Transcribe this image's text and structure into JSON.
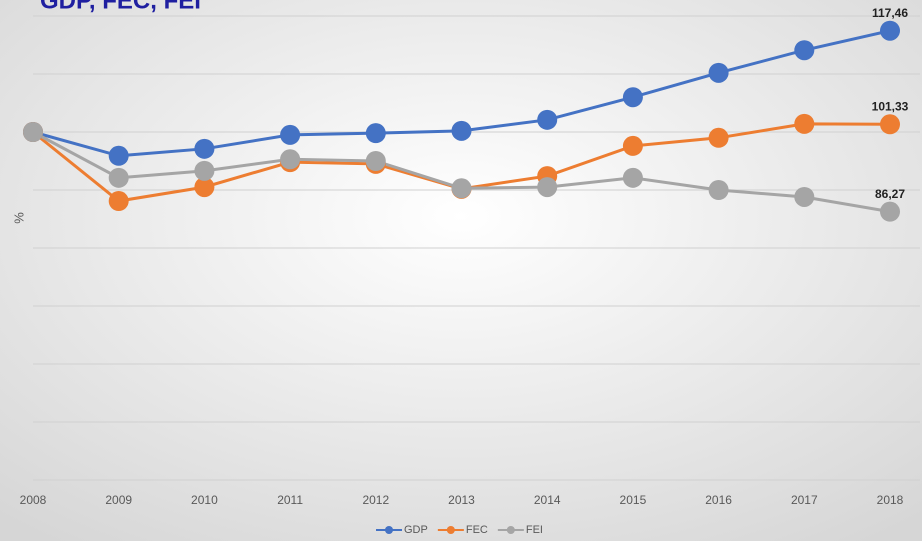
{
  "chart_data": {
    "type": "line",
    "title": "GDP, FEC, FEI",
    "y_label": "%",
    "categories": [
      "2008",
      "2009",
      "2010",
      "2011",
      "2012",
      "2013",
      "2014",
      "2015",
      "2016",
      "2017",
      "2018"
    ],
    "series": [
      {
        "name": "GDP",
        "color": "#4472c4",
        "values": [
          100,
          95.9,
          97.1,
          99.5,
          99.8,
          100.2,
          102.1,
          106.0,
          110.2,
          114.1,
          117.46
        ],
        "value_labels": [
          null,
          null,
          null,
          null,
          null,
          null,
          null,
          null,
          null,
          null,
          "117,46"
        ]
      },
      {
        "name": "FEC",
        "color": "#ed7d31",
        "values": [
          100,
          88.1,
          90.5,
          94.8,
          94.5,
          90.2,
          92.4,
          97.6,
          99.0,
          101.4,
          101.33
        ],
        "value_labels": [
          null,
          null,
          null,
          null,
          null,
          null,
          null,
          null,
          null,
          null,
          "101,33"
        ]
      },
      {
        "name": "FEI",
        "color": "#a5a5a5",
        "values": [
          100,
          92.1,
          93.3,
          95.3,
          95.0,
          90.3,
          90.5,
          92.1,
          90.0,
          88.8,
          86.27
        ],
        "value_labels": [
          null,
          null,
          null,
          null,
          null,
          null,
          null,
          null,
          null,
          null,
          "86,27"
        ]
      }
    ],
    "ylim": [
      40,
      120
    ],
    "yticks": [
      40,
      50,
      60,
      70,
      80,
      90,
      100,
      110,
      120
    ],
    "grid": true,
    "legend": "bottom"
  }
}
